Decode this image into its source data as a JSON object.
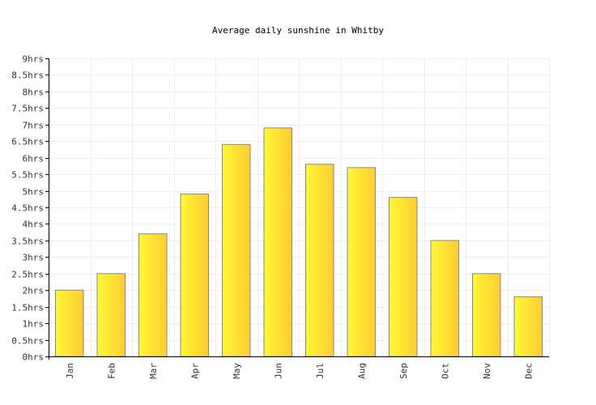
{
  "chart_data": {
    "type": "bar",
    "title": "Average daily sunshine in Whitby",
    "xlabel": "",
    "ylabel": "",
    "categories": [
      "Jan",
      "Feb",
      "Mar",
      "Apr",
      "May",
      "Jun",
      "Jul",
      "Aug",
      "Sep",
      "Oct",
      "Nov",
      "Dec"
    ],
    "values": [
      2.0,
      2.5,
      3.7,
      4.9,
      6.4,
      6.9,
      5.8,
      5.7,
      4.8,
      3.5,
      2.5,
      1.8
    ],
    "ylim": [
      0,
      9
    ],
    "yticks": [
      0,
      0.5,
      1,
      1.5,
      2,
      2.5,
      3,
      3.5,
      4,
      4.5,
      5,
      5.5,
      6,
      6.5,
      7,
      7.5,
      8,
      8.5,
      9
    ],
    "ytick_labels": [
      "0hrs",
      "0.5hrs",
      "1hrs",
      "1.5hrs",
      "2hrs",
      "2.5hrs",
      "3hrs",
      "3.5hrs",
      "4hrs",
      "4.5hrs",
      "5hrs",
      "5.5hrs",
      "6hrs",
      "6.5hrs",
      "7hrs",
      "7.5hrs",
      "8hrs",
      "8.5hrs",
      "9hrs"
    ],
    "grid": true,
    "colors": {
      "bar_light": "#fff833",
      "bar_dark": "#ffcc33",
      "bar_stroke": "#888888",
      "grid": "#eeeeee",
      "axis": "#000000"
    }
  }
}
